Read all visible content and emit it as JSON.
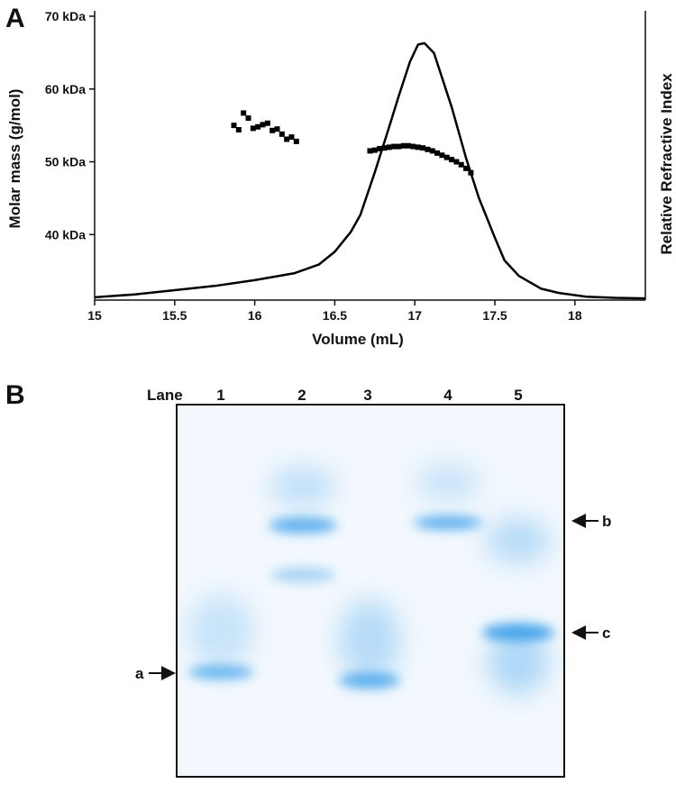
{
  "chart_data": {
    "type": "scatter",
    "panel_label": "A",
    "xlabel": "Volume (mL)",
    "ylabel": "Molar mass (g/mol)",
    "y2label": "Relative Refractive Index",
    "xlim": [
      15,
      18.44
    ],
    "xticks": [
      15,
      15.5,
      16,
      16.5,
      17,
      17.5,
      18
    ],
    "ylim": [
      31,
      70
    ],
    "yticks": [
      {
        "value": 40,
        "label": "40 kDa"
      },
      {
        "value": 50,
        "label": "50 kDa"
      },
      {
        "value": 60,
        "label": "60 kDa"
      },
      {
        "value": 70,
        "label": "70 kDa"
      }
    ],
    "y2lim": [
      0,
      100
    ],
    "series": [
      {
        "type": "scatter",
        "color": "#000000",
        "x": [
          15.87,
          15.9,
          15.93,
          15.96,
          15.99,
          16.02,
          16.05,
          16.08,
          16.11,
          16.14,
          16.17,
          16.2,
          16.23,
          16.26,
          16.72,
          16.75,
          16.78,
          16.81,
          16.84,
          16.87,
          16.9,
          16.93,
          16.96,
          16.99,
          17.02,
          17.05,
          17.08,
          17.11,
          17.14,
          17.17,
          17.2,
          17.23,
          17.26,
          17.29,
          17.32,
          17.35
        ],
        "values": [
          55,
          54.4,
          56.7,
          56,
          54.6,
          54.8,
          55.1,
          55.3,
          54.3,
          54.5,
          53.8,
          53.1,
          53.4,
          52.8,
          51.5,
          51.6,
          51.8,
          51.9,
          52.0,
          52.1,
          52.1,
          52.2,
          52.2,
          52.1,
          52.0,
          51.9,
          51.7,
          51.5,
          51.2,
          50.9,
          50.6,
          50.3,
          50.0,
          49.6,
          49.1,
          48.5
        ]
      },
      {
        "type": "line",
        "axis": "y2",
        "color": "#000000",
        "x": [
          15,
          15.25,
          15.5,
          15.75,
          16,
          16.25,
          16.4,
          16.5,
          16.6,
          16.66,
          16.75,
          16.84,
          16.9,
          16.97,
          17.02,
          17.06,
          17.12,
          17.23,
          17.32,
          17.4,
          17.5,
          17.56,
          17.65,
          17.79,
          17.9,
          18.07,
          18.25,
          18.44
        ],
        "values": [
          1,
          2,
          3.5,
          5,
          7,
          9.5,
          12.5,
          17,
          24,
          30,
          45,
          61,
          72,
          84,
          90,
          90.5,
          87,
          68,
          50,
          36,
          22,
          14,
          8.5,
          4,
          2.5,
          1.2,
          0.8,
          0.6
        ]
      }
    ]
  },
  "gel": {
    "panel_label": "B",
    "lane_heading": "Lane",
    "lanes": [
      "1",
      "2",
      "3",
      "4",
      "5"
    ],
    "markers": [
      "a",
      "b",
      "c"
    ]
  }
}
